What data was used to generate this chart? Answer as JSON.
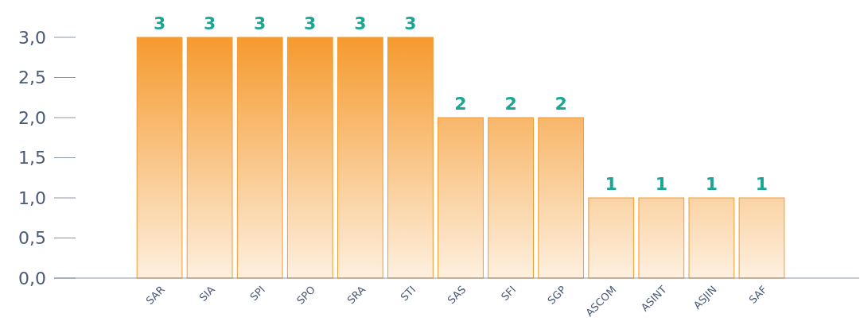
{
  "chart_data": {
    "type": "bar",
    "categories": [
      "SAR",
      "SIA",
      "SPI",
      "SPO",
      "SRA",
      "STI",
      "SAS",
      "SFI",
      "SGP",
      "ASCOM",
      "ASINT",
      "ASJIN",
      "SAF"
    ],
    "values": [
      3,
      3,
      3,
      3,
      3,
      3,
      2,
      2,
      2,
      1,
      1,
      1,
      1
    ],
    "color": "#f59a2e",
    "ylim": [
      0,
      3
    ],
    "yticks": [
      {
        "value": 0,
        "label": "0,0"
      },
      {
        "value": 0.5,
        "label": "0,5"
      },
      {
        "value": 1,
        "label": "1,0"
      },
      {
        "value": 1.5,
        "label": "1,5"
      },
      {
        "value": 2,
        "label": "2,0"
      },
      {
        "value": 2.5,
        "label": "2,5"
      },
      {
        "value": 3,
        "label": "3,0"
      }
    ],
    "data_labels": true
  }
}
